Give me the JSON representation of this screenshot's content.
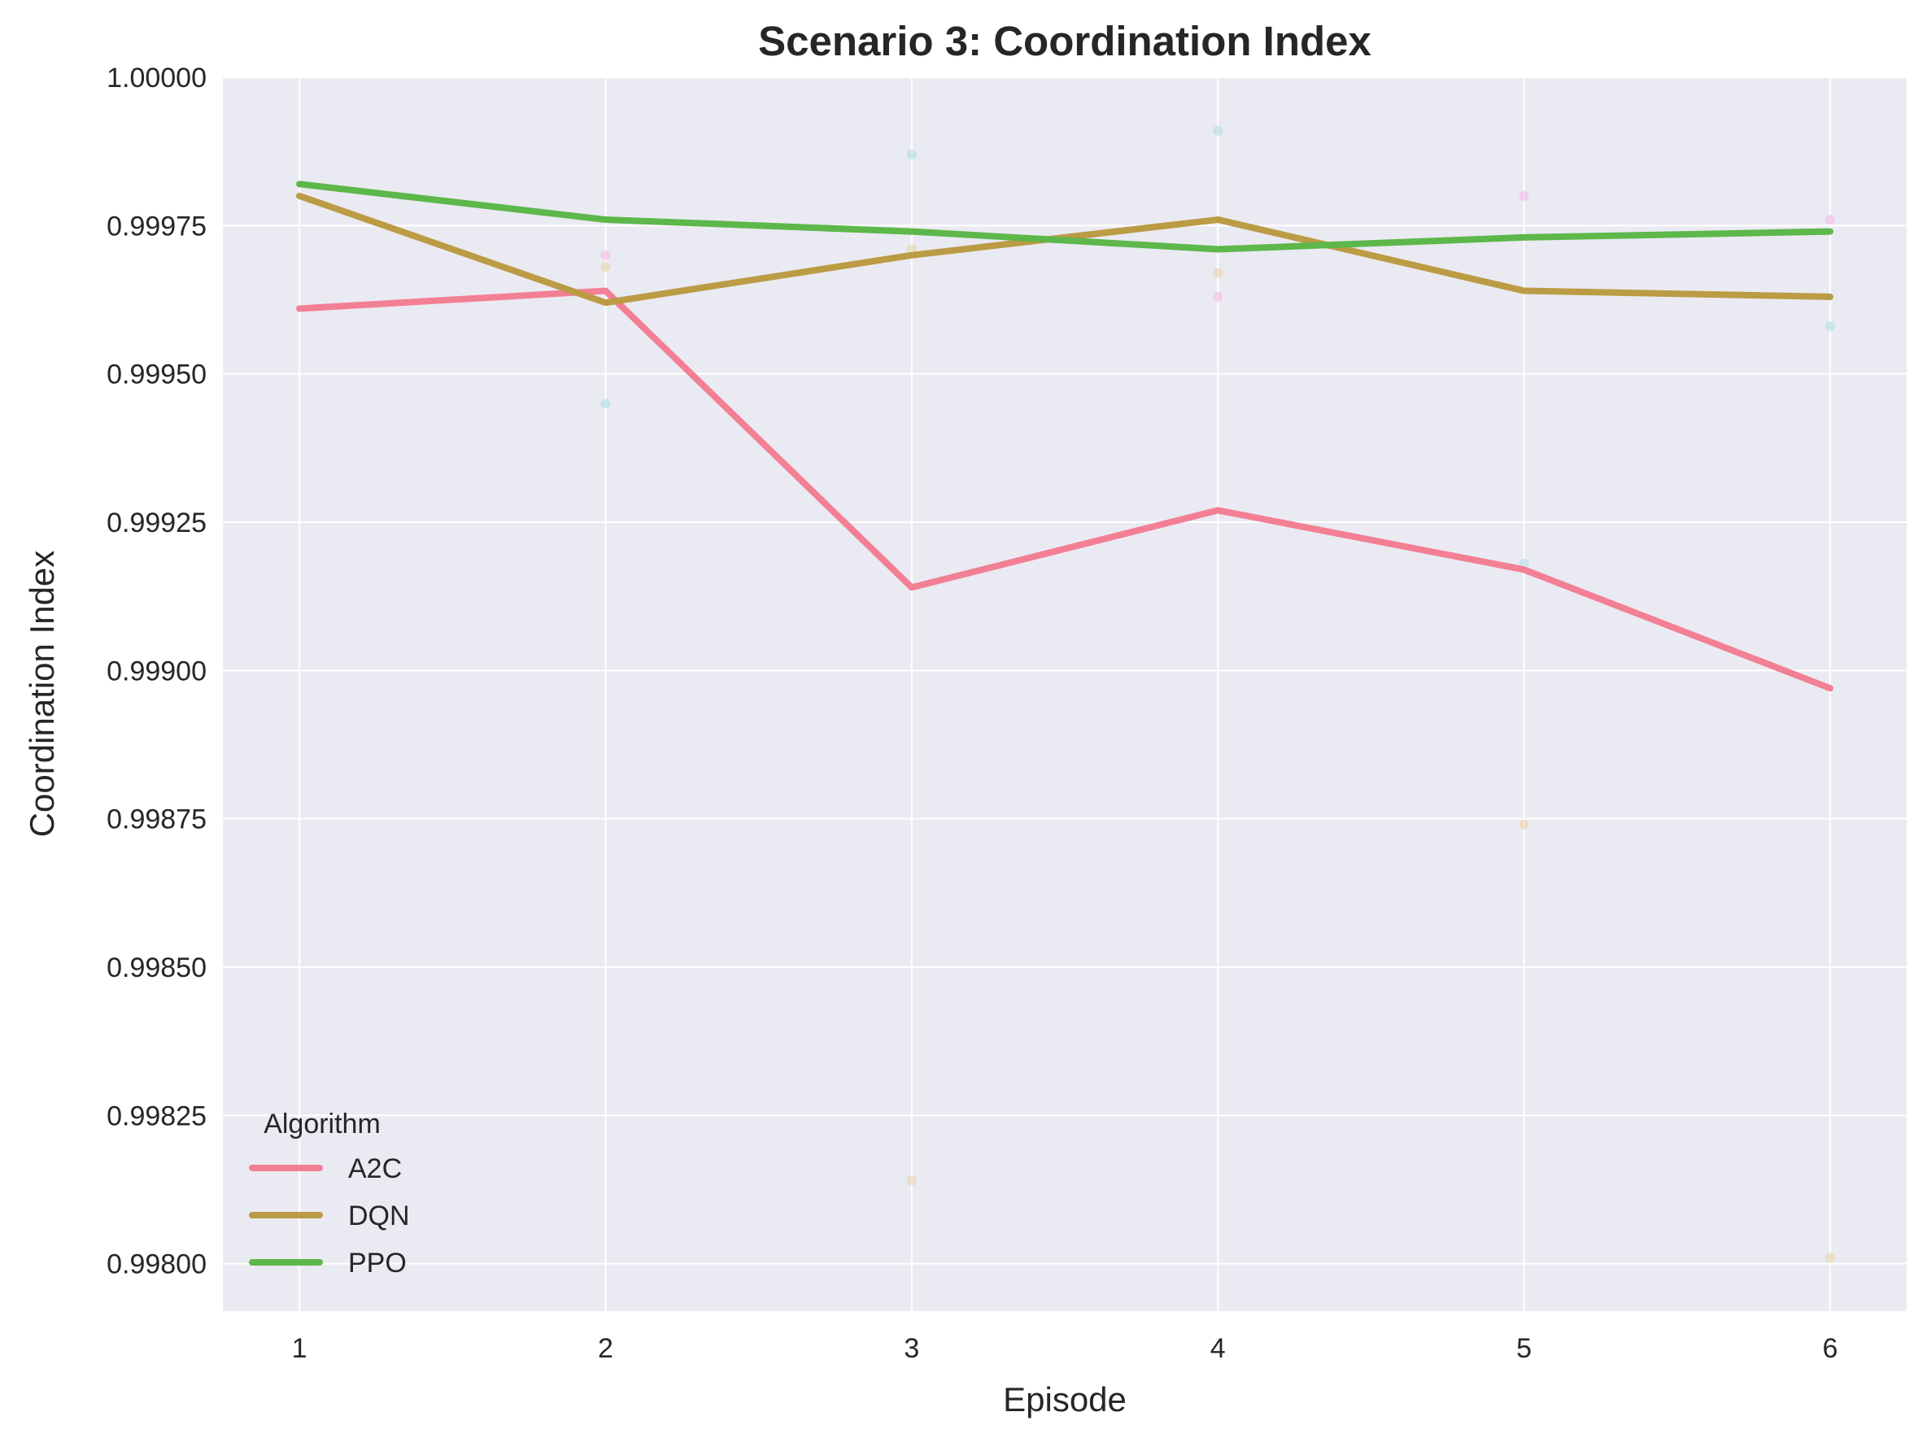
{
  "chart_data": {
    "type": "line",
    "title": "Scenario 3: Coordination Index",
    "xlabel": "Episode",
    "ylabel": "Coordination Index",
    "x": [
      1,
      2,
      3,
      4,
      5,
      6
    ],
    "xlim": [
      0.75,
      6.25
    ],
    "ylim": [
      0.99792,
      1.0
    ],
    "yticks": [
      0.998,
      0.99825,
      0.9985,
      0.99875,
      0.999,
      0.99925,
      0.9995,
      0.99975,
      1.0
    ],
    "ytick_labels": [
      "0.99800",
      "0.99825",
      "0.99850",
      "0.99875",
      "0.99900",
      "0.99925",
      "0.99950",
      "0.99975",
      "1.00000"
    ],
    "xticks": [
      1,
      2,
      3,
      4,
      5,
      6
    ],
    "xtick_labels": [
      "1",
      "2",
      "3",
      "4",
      "5",
      "6"
    ],
    "grid": true,
    "legend": {
      "title": "Algorithm",
      "placement": "lower-left"
    },
    "series": [
      {
        "name": "A2C",
        "color": "#f37f94",
        "values": [
          0.99961,
          0.99964,
          0.99914,
          0.99927,
          0.99917,
          0.99897
        ]
      },
      {
        "name": "DQN",
        "color": "#bb9b44",
        "values": [
          0.9998,
          0.99962,
          0.9997,
          0.99976,
          0.99964,
          0.99963
        ]
      },
      {
        "name": "PPO",
        "color": "#5db74a",
        "values": [
          0.99982,
          0.99976,
          0.99974,
          0.99971,
          0.99973,
          0.99974
        ]
      }
    ],
    "scatter_points": [
      {
        "x": 2,
        "y": 0.9997,
        "color": "#f6b2e6"
      },
      {
        "x": 2,
        "y": 0.99968,
        "color": "#e8cfa0"
      },
      {
        "x": 2,
        "y": 0.99945,
        "color": "#a8dde0"
      },
      {
        "x": 3,
        "y": 0.99987,
        "color": "#a8dde0"
      },
      {
        "x": 3,
        "y": 0.99971,
        "color": "#e8cfa0"
      },
      {
        "x": 3,
        "y": 0.99814,
        "color": "#e8cfa0"
      },
      {
        "x": 4,
        "y": 0.99991,
        "color": "#a8dde0"
      },
      {
        "x": 4,
        "y": 0.99967,
        "color": "#e8cfa0"
      },
      {
        "x": 4,
        "y": 0.99963,
        "color": "#f6b2e6"
      },
      {
        "x": 5,
        "y": 0.9998,
        "color": "#f6b2e6"
      },
      {
        "x": 5,
        "y": 0.99918,
        "color": "#a8dde0"
      },
      {
        "x": 5,
        "y": 0.99874,
        "color": "#e8cfa0"
      },
      {
        "x": 6,
        "y": 0.99976,
        "color": "#f6b2e6"
      },
      {
        "x": 6,
        "y": 0.99958,
        "color": "#a8dde0"
      },
      {
        "x": 6,
        "y": 0.99801,
        "color": "#e8cfa0"
      }
    ]
  }
}
